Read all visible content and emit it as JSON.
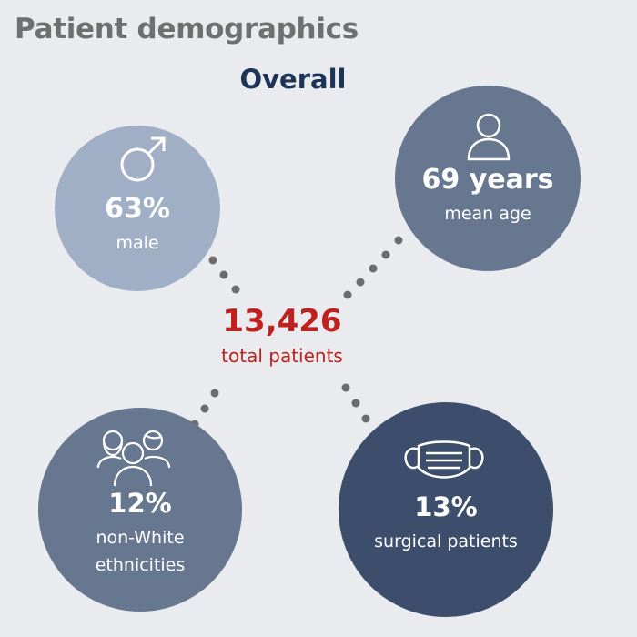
{
  "header": {
    "title": "Patient demographics",
    "section": "Overall"
  },
  "center": {
    "value": "13,426",
    "label": "total patients"
  },
  "stats": {
    "male": {
      "value": "63%",
      "label": "male",
      "icon": "male-symbol-icon"
    },
    "age": {
      "value": "69 years",
      "label": "mean age",
      "icon": "person-icon"
    },
    "ethnicity": {
      "value": "12%",
      "label_line1": "non-White",
      "label_line2": "ethnicities",
      "icon": "people-group-icon"
    },
    "surgical": {
      "value": "13%",
      "label": "surgical patients",
      "icon": "face-mask-icon"
    }
  },
  "colors": {
    "background": "#e9ebef",
    "title": "#6f6f6f",
    "section_title": "#1c3557",
    "accent_red": "#c0211e",
    "circle_light": "#a1afc6",
    "circle_mid": "#66778f",
    "circle_dark": "#3c4e6c",
    "connector": "#6c6c6c"
  }
}
